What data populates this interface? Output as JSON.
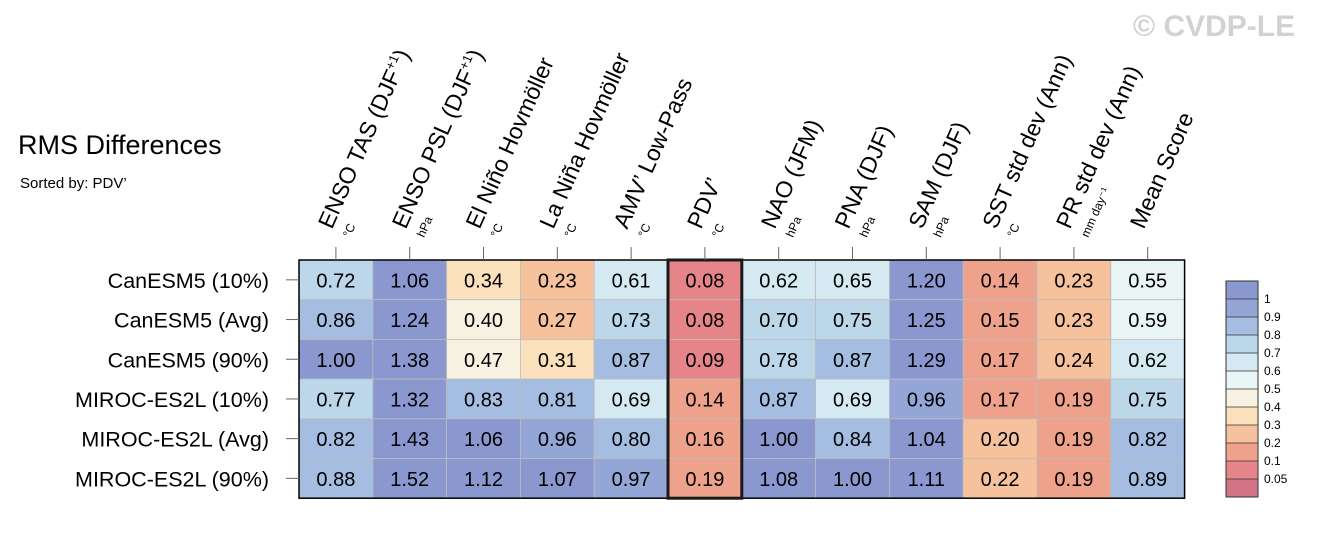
{
  "watermark": "© CVDP-LE",
  "title": "RMS Differences",
  "subtitle": "Sorted by: PDV’",
  "chart_data": {
    "type": "heatmap",
    "title": "RMS Differences",
    "subtitle": "Sorted by: PDV’",
    "columns": [
      {
        "label": "ENSO TAS (DJF",
        "sup": "+1",
        "close": ")",
        "unit": "°C"
      },
      {
        "label": "ENSO PSL (DJF",
        "sup": "+1",
        "close": ")",
        "unit": "hPa"
      },
      {
        "label": "El Niño Hovmöller",
        "sup": "",
        "close": "",
        "unit": "°C"
      },
      {
        "label": "La Niña Hovmöller",
        "sup": "",
        "close": "",
        "unit": "°C"
      },
      {
        "label": "AMV’ Low-Pass",
        "sup": "",
        "close": "",
        "unit": "°C"
      },
      {
        "label": "PDV’",
        "sup": "",
        "close": "",
        "unit": "°C"
      },
      {
        "label": "NAO (JFM)",
        "sup": "",
        "close": "",
        "unit": "hPa"
      },
      {
        "label": "PNA (DJF)",
        "sup": "",
        "close": "",
        "unit": "hPa"
      },
      {
        "label": "SAM (DJF)",
        "sup": "",
        "close": "",
        "unit": "hPa"
      },
      {
        "label": "SST std dev (Ann)",
        "sup": "",
        "close": "",
        "unit": "°C"
      },
      {
        "label": "PR std dev (Ann)",
        "sup": "",
        "close": "",
        "unit": "mm day⁻¹"
      },
      {
        "label": "Mean Score",
        "sup": "",
        "close": "",
        "unit": ""
      }
    ],
    "rows": [
      "CanESM5 (10%)",
      "CanESM5 (Avg)",
      "CanESM5 (90%)",
      "MIROC-ES2L (10%)",
      "MIROC-ES2L (Avg)",
      "MIROC-ES2L (90%)"
    ],
    "values": [
      [
        0.72,
        1.06,
        0.34,
        0.23,
        0.61,
        0.08,
        0.62,
        0.65,
        1.2,
        0.14,
        0.23,
        0.55
      ],
      [
        0.86,
        1.24,
        0.4,
        0.27,
        0.73,
        0.08,
        0.7,
        0.75,
        1.25,
        0.15,
        0.23,
        0.59
      ],
      [
        1.0,
        1.38,
        0.47,
        0.31,
        0.87,
        0.09,
        0.78,
        0.87,
        1.29,
        0.17,
        0.24,
        0.62
      ],
      [
        0.77,
        1.32,
        0.83,
        0.81,
        0.69,
        0.14,
        0.87,
        0.69,
        0.96,
        0.17,
        0.19,
        0.75
      ],
      [
        0.82,
        1.43,
        1.06,
        0.96,
        0.8,
        0.16,
        1.0,
        0.84,
        1.04,
        0.2,
        0.19,
        0.82
      ],
      [
        0.88,
        1.52,
        1.12,
        1.07,
        0.97,
        0.19,
        1.08,
        1.0,
        1.11,
        0.22,
        0.19,
        0.89
      ]
    ],
    "highlight_column": "PDV’",
    "colorbar": {
      "labels": [
        "1",
        "0.9",
        "0.8",
        "0.7",
        "0.6",
        "0.5",
        "0.4",
        "0.3",
        "0.2",
        "0.1",
        "0.05"
      ],
      "levels": [
        0.05,
        0.1,
        0.2,
        0.3,
        0.4,
        0.5,
        0.6,
        0.7,
        0.8,
        0.9,
        1
      ],
      "colors": [
        "#d27386",
        "#e5858a",
        "#eea28c",
        "#f6c19d",
        "#fae0bb",
        "#f6f1e0",
        "#e9f4f5",
        "#d4e9f1",
        "#bcd6ea",
        "#a4bde0",
        "#93a6d6",
        "#8b98cf"
      ]
    }
  }
}
